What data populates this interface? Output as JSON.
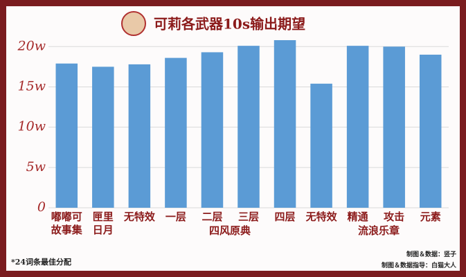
{
  "chart_data": {
    "type": "bar",
    "title": "可莉各武器10s输出期望",
    "categories": [
      "嘟嘟可\n故事集",
      "匣里\n日月",
      "无特效",
      "一层",
      "二层",
      "三层",
      "四层",
      "无特效",
      "精通",
      "攻击",
      "元素"
    ],
    "values": [
      17.9,
      17.5,
      17.8,
      18.6,
      19.3,
      20.1,
      20.8,
      15.4,
      20.1,
      20.0,
      19.0
    ],
    "color": "#5b9bd5",
    "ylim": [
      0,
      20.8
    ],
    "yticks": [
      0,
      {
        "value": 5,
        "label": "5w"
      },
      {
        "value": 10,
        "label": "10w"
      },
      {
        "value": 15,
        "label": "15w"
      },
      {
        "value": 20,
        "label": "20w"
      }
    ],
    "grid": true,
    "annotations": [
      "四风原典",
      "流浪乐章"
    ],
    "footnote": "*24词条最佳分配",
    "credits": [
      "制图＆数据：竖子",
      "制图＆数据指导：白猫大人"
    ]
  }
}
